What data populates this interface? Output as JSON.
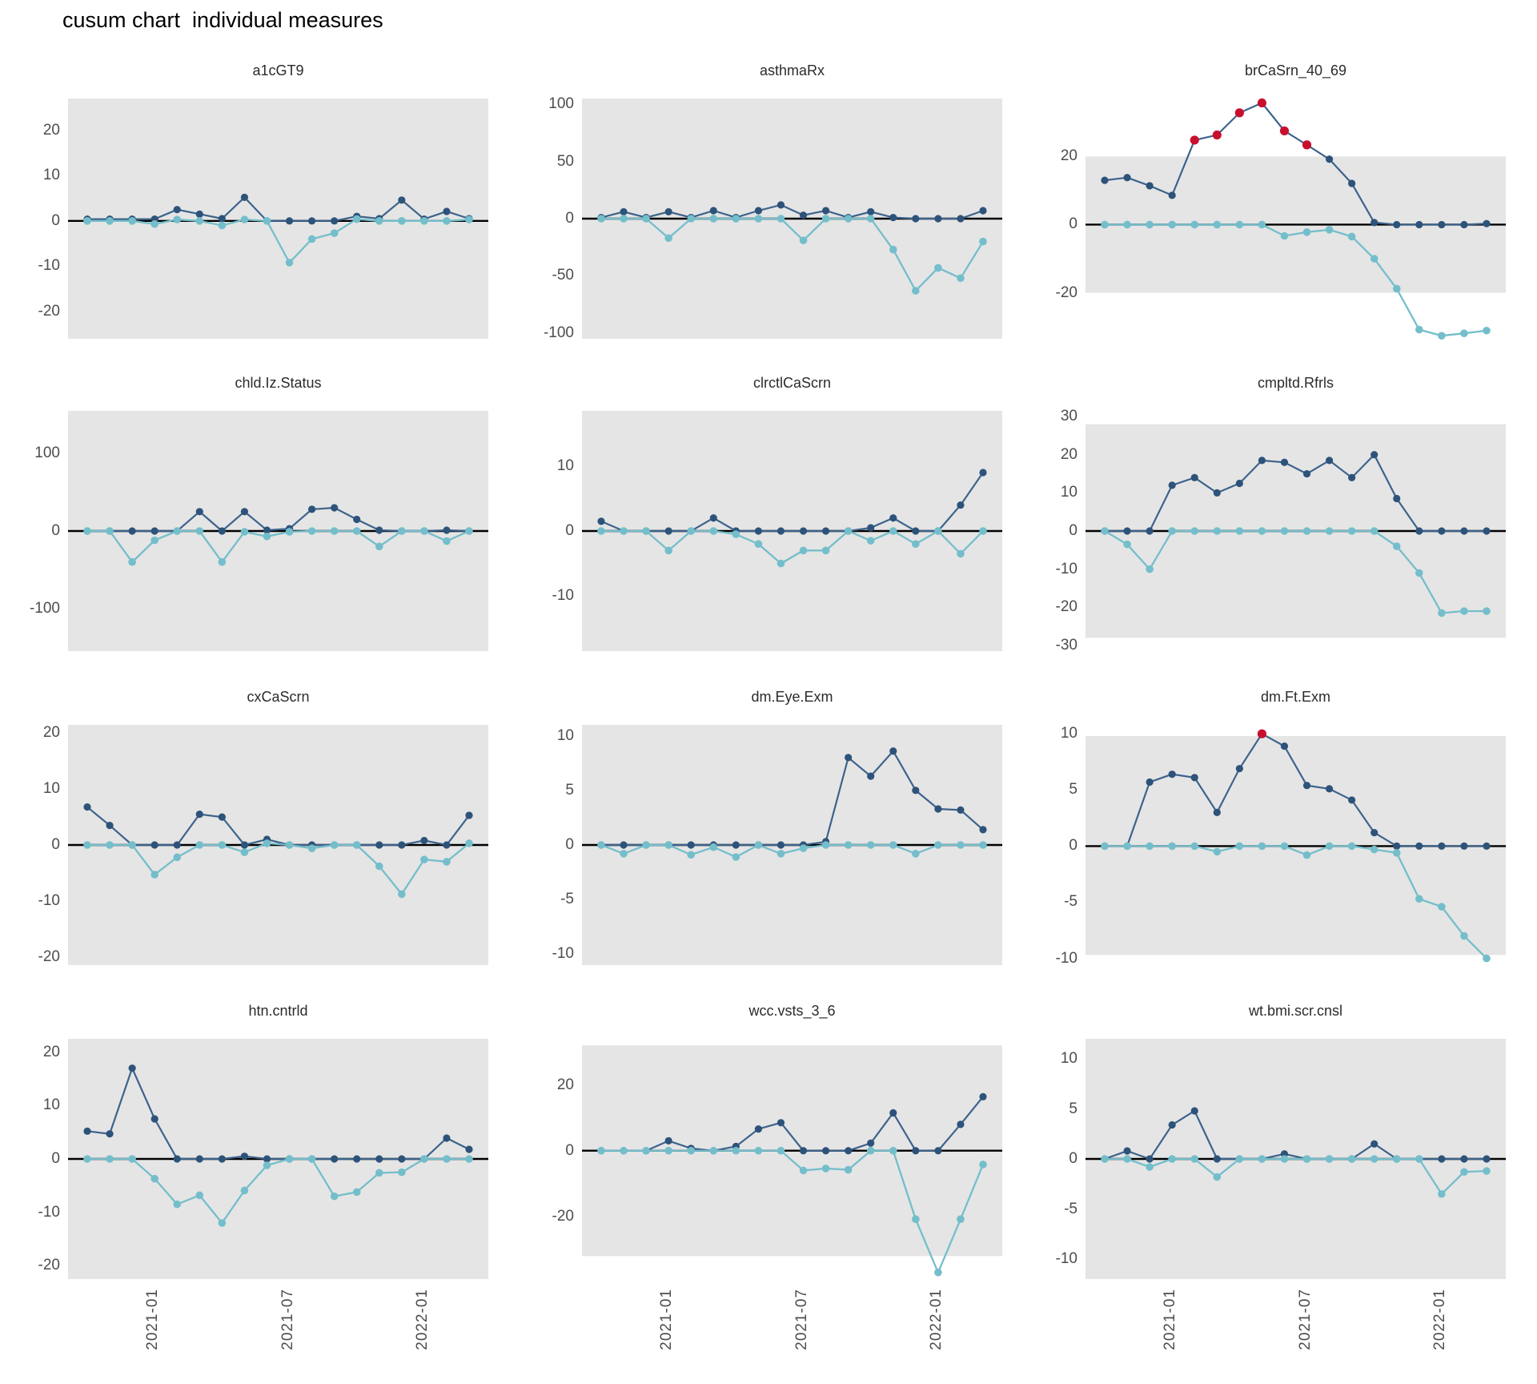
{
  "title": "cusum chart  individual measures",
  "colors": {
    "upper_series": "#2E537A",
    "upper_line": "#3D638C",
    "lower_series": "#74BECB",
    "signal_point": "#C8102E",
    "control_band": "#E5E5E5",
    "zero_line": "#000000",
    "axis_text": "#4d4d4d",
    "facet_title_text": "#2b2b2b"
  },
  "x_axis": {
    "n_points": 18,
    "tick_labels": [
      "2021-01",
      "2021-07",
      "2022-01"
    ],
    "tick_indices": [
      3,
      9,
      15
    ]
  },
  "chart_data": [
    {
      "type": "line",
      "title": "a1cGT9",
      "yticks": [
        20,
        10,
        0,
        -10,
        -20
      ],
      "ylim": [
        -26,
        27
      ],
      "band": null,
      "series": [
        {
          "name": "upper",
          "values": [
            0.4,
            0.4,
            0.4,
            0.4,
            2.5,
            1.5,
            0.5,
            5.2,
            0,
            0,
            0,
            0,
            1,
            0.5,
            4.6,
            0.4,
            2.1,
            0.5
          ],
          "signals": []
        },
        {
          "name": "lower",
          "values": [
            0,
            0,
            0,
            -0.7,
            0.3,
            0,
            -1,
            0.3,
            0,
            -9.2,
            -4,
            -2.7,
            0.4,
            0,
            0,
            0,
            0,
            0.3
          ],
          "signals": []
        }
      ]
    },
    {
      "type": "line",
      "title": "asthmaRx",
      "yticks": [
        100,
        50,
        0,
        -50,
        -100
      ],
      "ylim": [
        -105,
        105
      ],
      "band": null,
      "series": [
        {
          "name": "upper",
          "values": [
            1,
            6,
            1,
            6,
            1,
            7,
            1,
            7,
            12,
            3,
            7,
            1,
            6,
            1,
            0,
            0,
            0,
            7
          ],
          "signals": []
        },
        {
          "name": "lower",
          "values": [
            0,
            0,
            0,
            -17,
            0,
            0,
            0,
            0,
            0,
            -19,
            0,
            0,
            0,
            -27,
            -63,
            -43,
            -52,
            -20
          ],
          "signals": []
        }
      ]
    },
    {
      "type": "line",
      "title": "brCaSrn_40_69",
      "yticks": [
        20,
        0,
        -20
      ],
      "ylim": [
        -33.5,
        37
      ],
      "band": [
        -20,
        20
      ],
      "series": [
        {
          "name": "upper",
          "values": [
            13,
            13.8,
            11.4,
            8.6,
            24.8,
            26.3,
            32.8,
            35.7,
            27.5,
            23.4,
            19.2,
            12.1,
            0.6,
            0,
            0,
            0,
            0,
            0.3
          ],
          "signals": [
            4,
            5,
            6,
            7,
            8,
            9
          ]
        },
        {
          "name": "lower",
          "values": [
            0,
            0,
            0,
            0,
            0,
            0,
            0,
            0,
            -3.3,
            -2.2,
            -1.5,
            -3.5,
            -10,
            -18.8,
            -30.8,
            -32.6,
            -31.9,
            -31.1
          ],
          "signals": []
        }
      ]
    },
    {
      "type": "line",
      "title": "chld.Iz.Status",
      "yticks": [
        100,
        0,
        -100
      ],
      "ylim": [
        -155,
        155
      ],
      "band": null,
      "series": [
        {
          "name": "upper",
          "values": [
            0,
            0,
            0,
            0,
            0,
            25,
            0,
            25,
            1,
            3,
            28,
            30,
            15,
            1,
            0,
            0,
            1,
            0
          ],
          "signals": []
        },
        {
          "name": "lower",
          "values": [
            0,
            0,
            -40,
            -12,
            0,
            0,
            -40,
            -1,
            -7,
            -1,
            0,
            0,
            0,
            -20,
            0,
            0,
            -13,
            0
          ],
          "signals": []
        }
      ]
    },
    {
      "type": "line",
      "title": "clrctlCaScrn",
      "yticks": [
        10,
        0,
        -10
      ],
      "ylim": [
        -18.5,
        18.5
      ],
      "band": null,
      "series": [
        {
          "name": "upper",
          "values": [
            1.5,
            0,
            0,
            0,
            0,
            2,
            0,
            0,
            0,
            0,
            0,
            0,
            0.5,
            2,
            0,
            0,
            4,
            9
          ],
          "signals": []
        },
        {
          "name": "lower",
          "values": [
            0,
            0,
            0,
            -3,
            0,
            0,
            -0.5,
            -2,
            -5,
            -3,
            -3,
            0,
            -1.5,
            0,
            -2,
            0,
            -3.5,
            0
          ],
          "signals": []
        }
      ]
    },
    {
      "type": "line",
      "title": "cmpltd.Rfrls",
      "yticks": [
        30,
        20,
        10,
        0,
        -10,
        -20,
        -30
      ],
      "ylim": [
        -31.5,
        31.5
      ],
      "band": [
        -28,
        28
      ],
      "series": [
        {
          "name": "upper",
          "values": [
            0,
            0,
            0,
            12,
            14,
            10,
            12.5,
            18.5,
            18,
            15,
            18.5,
            14,
            20,
            8.5,
            0,
            0,
            0,
            0
          ],
          "signals": []
        },
        {
          "name": "lower",
          "values": [
            0,
            -3.5,
            -10,
            0,
            0,
            0,
            0,
            0,
            0,
            0,
            0,
            0,
            0,
            -4,
            -11,
            -21.5,
            -21,
            -21
          ],
          "signals": []
        }
      ]
    },
    {
      "type": "line",
      "title": "cxCaScrn",
      "yticks": [
        20,
        10,
        0,
        -10,
        -20
      ],
      "ylim": [
        -21.5,
        21.5
      ],
      "band": null,
      "series": [
        {
          "name": "upper",
          "values": [
            6.8,
            3.5,
            0,
            0,
            0,
            5.5,
            5,
            0,
            1,
            0,
            0,
            0,
            0,
            0,
            0,
            0.8,
            0,
            5.3
          ],
          "signals": []
        },
        {
          "name": "lower",
          "values": [
            0,
            0,
            0,
            -5.3,
            -2.2,
            0,
            0,
            -1.3,
            0.3,
            0,
            -0.6,
            0,
            0,
            -3.8,
            -8.8,
            -2.6,
            -3,
            0.3
          ],
          "signals": []
        }
      ]
    },
    {
      "type": "line",
      "title": "dm.Eye.Exm",
      "yticks": [
        10,
        5,
        0,
        -5,
        -10
      ],
      "ylim": [
        -11,
        11
      ],
      "band": null,
      "series": [
        {
          "name": "upper",
          "values": [
            0,
            0,
            0,
            0,
            0,
            0,
            0,
            0,
            0,
            0,
            0.3,
            8,
            6.3,
            8.6,
            5,
            3.3,
            3.2,
            1.4
          ],
          "signals": []
        },
        {
          "name": "lower",
          "values": [
            0,
            -0.8,
            0,
            0,
            -0.9,
            -0.2,
            -1.1,
            0,
            -0.8,
            -0.3,
            0,
            0,
            0,
            0,
            -0.8,
            0,
            0,
            0
          ],
          "signals": []
        }
      ]
    },
    {
      "type": "line",
      "title": "dm.Ft.Exm",
      "yticks": [
        10,
        5,
        0,
        -5,
        -10
      ],
      "ylim": [
        -10.6,
        10.8
      ],
      "band": [
        -9.7,
        9.8
      ],
      "series": [
        {
          "name": "upper",
          "values": [
            0,
            0,
            5.7,
            6.4,
            6.1,
            3,
            6.9,
            10,
            8.9,
            5.4,
            5.1,
            4.1,
            1.2,
            0,
            0,
            0,
            0,
            0
          ],
          "signals": [
            7
          ]
        },
        {
          "name": "lower",
          "values": [
            0,
            0,
            0,
            0,
            0,
            -0.5,
            0,
            0,
            0,
            -0.8,
            0,
            0,
            -0.3,
            -0.6,
            -4.7,
            -5.4,
            -8,
            -10
          ],
          "signals": []
        }
      ]
    },
    {
      "type": "line",
      "title": "htn.cntrld",
      "yticks": [
        20,
        10,
        0,
        -10,
        -20
      ],
      "ylim": [
        -22.5,
        22.5
      ],
      "band": null,
      "series": [
        {
          "name": "upper",
          "values": [
            5.2,
            4.7,
            17,
            7.5,
            0,
            0,
            0,
            0.5,
            0,
            0,
            0,
            0,
            0,
            0,
            0,
            0,
            3.9,
            1.8
          ],
          "signals": []
        },
        {
          "name": "lower",
          "values": [
            0,
            0,
            0,
            -3.7,
            -8.5,
            -6.8,
            -12,
            -5.9,
            -1.2,
            0,
            0,
            -7,
            -6.2,
            -2.6,
            -2.5,
            0,
            0,
            0
          ],
          "signals": []
        }
      ]
    },
    {
      "type": "line",
      "title": "wcc.vsts_3_6",
      "yticks": [
        20,
        0,
        -20
      ],
      "ylim": [
        -39,
        34
      ],
      "band": [
        -32,
        32
      ],
      "series": [
        {
          "name": "upper",
          "values": [
            0,
            0,
            0,
            3,
            0.7,
            0,
            1.3,
            6.6,
            8.5,
            0,
            0,
            0,
            2.3,
            11.5,
            0,
            0,
            8,
            16.4
          ],
          "signals": []
        },
        {
          "name": "lower",
          "values": [
            0,
            0,
            0,
            0,
            0,
            0,
            0,
            0,
            0,
            -6,
            -5.4,
            -5.8,
            0,
            0,
            -20.8,
            -37,
            -20.8,
            -4.2
          ],
          "signals": []
        }
      ]
    },
    {
      "type": "line",
      "title": "wt.bmi.scr.cnsl",
      "yticks": [
        10,
        5,
        0,
        -5,
        -10
      ],
      "ylim": [
        -12,
        12
      ],
      "band": null,
      "series": [
        {
          "name": "upper",
          "values": [
            0,
            0.8,
            0,
            3.4,
            4.8,
            0,
            0,
            0,
            0.5,
            0,
            0,
            0,
            1.5,
            0,
            0,
            0,
            0,
            0
          ],
          "signals": []
        },
        {
          "name": "lower",
          "values": [
            0,
            0,
            -0.8,
            0,
            0,
            -1.8,
            0,
            0,
            0,
            0,
            0,
            0,
            0,
            0,
            0,
            -3.5,
            -1.3,
            -1.2
          ],
          "signals": []
        }
      ]
    }
  ]
}
